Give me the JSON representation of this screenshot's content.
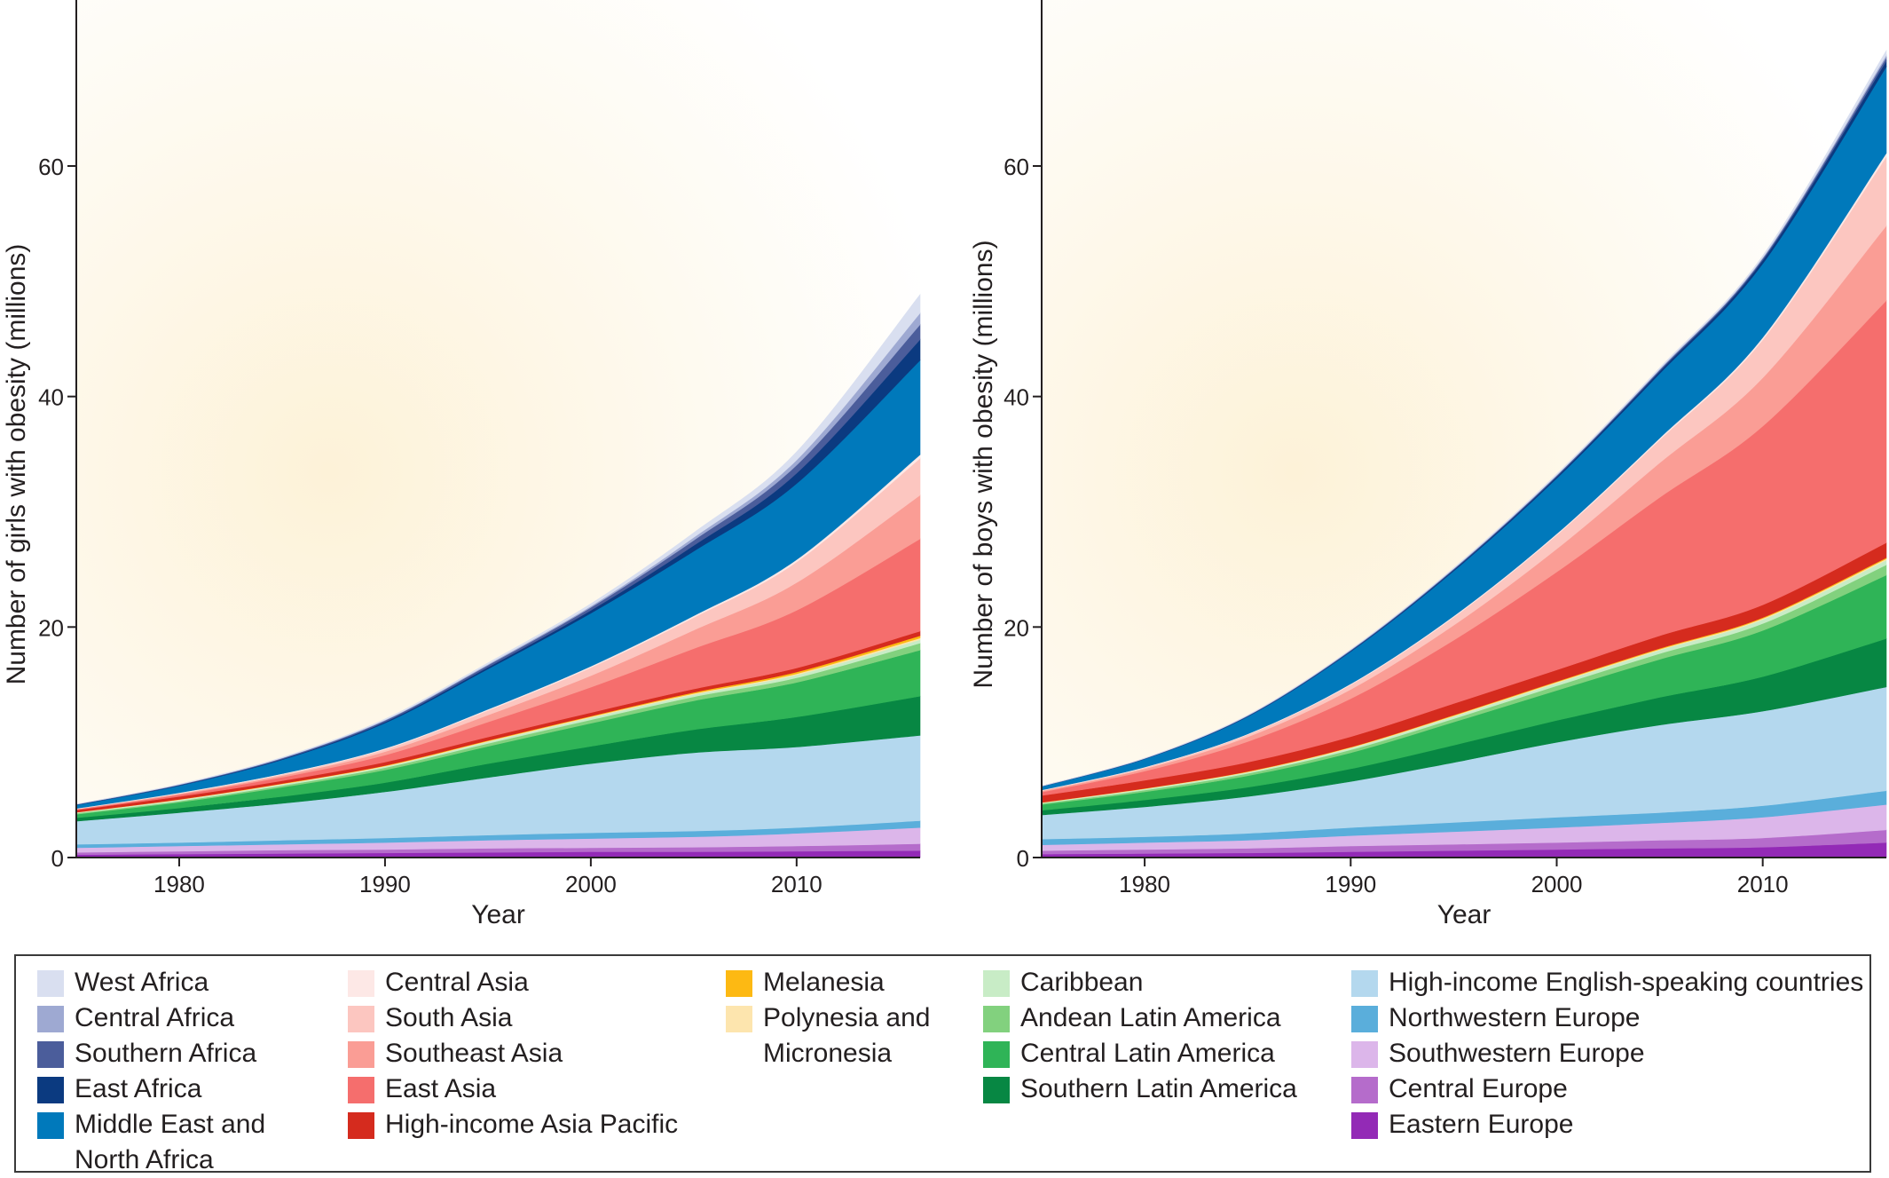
{
  "chart_data": [
    {
      "type": "area",
      "stacked": true,
      "title": "",
      "xlabel": "Year",
      "ylabel": "Number of girls with obesity (millions)",
      "xlim": [
        1975,
        2016
      ],
      "ylim": [
        0,
        75
      ],
      "x_ticks": [
        1980,
        1990,
        2000,
        2010
      ],
      "y_ticks": [
        0,
        20,
        40,
        60
      ],
      "x": [
        1975,
        1980,
        1985,
        1990,
        1995,
        2000,
        2005,
        2010,
        2016
      ],
      "series": [
        {
          "name": "Eastern Europe",
          "values": [
            0.25,
            0.3,
            0.35,
            0.4,
            0.45,
            0.5,
            0.5,
            0.55,
            0.6
          ]
        },
        {
          "name": "Central Europe",
          "values": [
            0.2,
            0.25,
            0.3,
            0.3,
            0.35,
            0.35,
            0.4,
            0.45,
            0.6
          ]
        },
        {
          "name": "Southwestern Europe",
          "values": [
            0.4,
            0.45,
            0.5,
            0.6,
            0.7,
            0.8,
            0.9,
            1.1,
            1.4
          ]
        },
        {
          "name": "Northwestern Europe",
          "values": [
            0.3,
            0.3,
            0.35,
            0.4,
            0.45,
            0.5,
            0.5,
            0.5,
            0.6
          ]
        },
        {
          "name": "High-income English-speaking countries",
          "values": [
            2.0,
            2.6,
            3.2,
            4.0,
            5.0,
            6.0,
            6.8,
            7.0,
            7.4
          ]
        },
        {
          "name": "Southern Latin America",
          "values": [
            0.3,
            0.4,
            0.6,
            0.8,
            1.2,
            1.5,
            2.0,
            2.6,
            3.4
          ]
        },
        {
          "name": "Central Latin America",
          "values": [
            0.3,
            0.5,
            0.8,
            1.1,
            1.5,
            2.0,
            2.5,
            3.0,
            4.0
          ]
        },
        {
          "name": "Andean Latin America",
          "values": [
            0.1,
            0.1,
            0.15,
            0.2,
            0.25,
            0.3,
            0.35,
            0.4,
            0.6
          ]
        },
        {
          "name": "Caribbean",
          "values": [
            0.05,
            0.1,
            0.1,
            0.1,
            0.15,
            0.2,
            0.2,
            0.25,
            0.3
          ]
        },
        {
          "name": "Polynesia and Micronesia",
          "values": [
            0.02,
            0.03,
            0.04,
            0.05,
            0.06,
            0.07,
            0.08,
            0.1,
            0.15
          ]
        },
        {
          "name": "Melanesia",
          "values": [
            0.01,
            0.02,
            0.03,
            0.04,
            0.05,
            0.06,
            0.1,
            0.15,
            0.2
          ]
        },
        {
          "name": "High-income Asia Pacific",
          "values": [
            0.2,
            0.25,
            0.25,
            0.3,
            0.3,
            0.3,
            0.3,
            0.35,
            0.4
          ]
        },
        {
          "name": "East Asia",
          "values": [
            0.05,
            0.15,
            0.3,
            0.6,
            1.3,
            2.2,
            3.5,
            5.0,
            8.0
          ]
        },
        {
          "name": "Southeast Asia",
          "values": [
            0.03,
            0.08,
            0.15,
            0.3,
            0.6,
            1.0,
            1.6,
            2.4,
            3.8
          ]
        },
        {
          "name": "South Asia",
          "values": [
            0.02,
            0.05,
            0.1,
            0.2,
            0.4,
            0.7,
            1.1,
            1.8,
            3.2
          ]
        },
        {
          "name": "Central Asia",
          "values": [
            0.03,
            0.05,
            0.06,
            0.08,
            0.1,
            0.12,
            0.15,
            0.2,
            0.3
          ]
        },
        {
          "name": "Middle East and North Africa",
          "values": [
            0.3,
            0.6,
            1.2,
            2.2,
            3.5,
            4.6,
            5.6,
            6.6,
            8.2
          ]
        },
        {
          "name": "East Africa",
          "values": [
            0.02,
            0.04,
            0.06,
            0.1,
            0.15,
            0.25,
            0.5,
            0.9,
            1.8
          ]
        },
        {
          "name": "Southern Africa",
          "values": [
            0.03,
            0.05,
            0.08,
            0.12,
            0.18,
            0.25,
            0.45,
            0.7,
            1.3
          ]
        },
        {
          "name": "Central Africa",
          "values": [
            0.01,
            0.02,
            0.03,
            0.05,
            0.08,
            0.12,
            0.25,
            0.45,
            1.0
          ]
        },
        {
          "name": "West Africa",
          "values": [
            0.02,
            0.03,
            0.05,
            0.08,
            0.12,
            0.2,
            0.4,
            0.7,
            1.6
          ]
        }
      ]
    },
    {
      "type": "area",
      "stacked": true,
      "title": "",
      "xlabel": "Year",
      "ylabel": "Number of boys with obesity (millions)",
      "xlim": [
        1975,
        2016
      ],
      "ylim": [
        0,
        75
      ],
      "x_ticks": [
        1980,
        1990,
        2000,
        2010
      ],
      "y_ticks": [
        0,
        20,
        40,
        60
      ],
      "x": [
        1975,
        1980,
        1985,
        1990,
        1995,
        2000,
        2005,
        2010,
        2016
      ],
      "series": [
        {
          "name": "Eastern Europe",
          "values": [
            0.3,
            0.35,
            0.4,
            0.5,
            0.6,
            0.7,
            0.8,
            0.9,
            1.3
          ]
        },
        {
          "name": "Central Europe",
          "values": [
            0.3,
            0.35,
            0.4,
            0.5,
            0.55,
            0.6,
            0.7,
            0.8,
            1.1
          ]
        },
        {
          "name": "Southwestern Europe",
          "values": [
            0.5,
            0.6,
            0.7,
            0.9,
            1.1,
            1.3,
            1.5,
            1.8,
            2.2
          ]
        },
        {
          "name": "Northwestern Europe",
          "values": [
            0.5,
            0.5,
            0.6,
            0.7,
            0.8,
            0.9,
            0.9,
            1.0,
            1.2
          ]
        },
        {
          "name": "High-income English-speaking countries",
          "values": [
            2.1,
            2.6,
            3.2,
            4.0,
            5.2,
            6.5,
            7.6,
            8.2,
            9.0
          ]
        },
        {
          "name": "Southern Latin America",
          "values": [
            0.4,
            0.6,
            0.8,
            1.1,
            1.5,
            1.9,
            2.4,
            3.0,
            4.2
          ]
        },
        {
          "name": "Central Latin America",
          "values": [
            0.5,
            0.7,
            1.0,
            1.4,
            2.0,
            2.6,
            3.3,
            4.0,
            5.5
          ]
        },
        {
          "name": "Andean Latin America",
          "values": [
            0.1,
            0.15,
            0.2,
            0.25,
            0.3,
            0.4,
            0.5,
            0.6,
            0.9
          ]
        },
        {
          "name": "Caribbean",
          "values": [
            0.05,
            0.1,
            0.1,
            0.15,
            0.2,
            0.25,
            0.3,
            0.35,
            0.4
          ]
        },
        {
          "name": "Polynesia and Micronesia",
          "values": [
            0.02,
            0.03,
            0.04,
            0.05,
            0.06,
            0.07,
            0.08,
            0.1,
            0.12
          ]
        },
        {
          "name": "Melanesia",
          "values": [
            0.01,
            0.02,
            0.03,
            0.04,
            0.05,
            0.06,
            0.07,
            0.08,
            0.1
          ]
        },
        {
          "name": "High-income Asia Pacific",
          "values": [
            0.6,
            0.7,
            0.8,
            0.9,
            1.0,
            1.0,
            1.1,
            1.1,
            1.3
          ]
        },
        {
          "name": "East Asia",
          "values": [
            0.3,
            0.8,
            1.8,
            3.3,
            5.5,
            8.5,
            12.0,
            15.5,
            21.0
          ]
        },
        {
          "name": "Southeast Asia",
          "values": [
            0.1,
            0.2,
            0.4,
            0.8,
            1.3,
            2.0,
            3.0,
            4.2,
            6.5
          ]
        },
        {
          "name": "South Asia",
          "values": [
            0.05,
            0.1,
            0.2,
            0.4,
            0.7,
            1.2,
            2.0,
            3.3,
            6.0
          ]
        },
        {
          "name": "Central Asia",
          "values": [
            0.03,
            0.05,
            0.06,
            0.08,
            0.1,
            0.12,
            0.15,
            0.2,
            0.3
          ]
        },
        {
          "name": "Middle East and North Africa",
          "values": [
            0.3,
            0.7,
            1.5,
            2.8,
            3.9,
            4.8,
            5.6,
            6.4,
            7.5
          ]
        },
        {
          "name": "East Africa",
          "values": [
            0.01,
            0.02,
            0.04,
            0.06,
            0.1,
            0.15,
            0.2,
            0.3,
            0.5
          ]
        },
        {
          "name": "Southern Africa",
          "values": [
            0.02,
            0.03,
            0.04,
            0.06,
            0.08,
            0.1,
            0.12,
            0.15,
            0.3
          ]
        },
        {
          "name": "Central Africa",
          "values": [
            0.01,
            0.01,
            0.02,
            0.03,
            0.04,
            0.05,
            0.07,
            0.09,
            0.2
          ]
        },
        {
          "name": "West Africa",
          "values": [
            0.01,
            0.02,
            0.03,
            0.04,
            0.06,
            0.08,
            0.1,
            0.15,
            0.4
          ]
        }
      ]
    }
  ],
  "legend": {
    "columns": [
      [
        {
          "label": "West Africa",
          "color": "#d9dff0"
        },
        {
          "label": "Central Africa",
          "color": "#9ea9d2"
        },
        {
          "label": "Southern Africa",
          "color": "#4b5d9b"
        },
        {
          "label": "East Africa",
          "color": "#0b3a80"
        },
        {
          "label": "Middle East and\nNorth Africa",
          "color": "#0079bb"
        }
      ],
      [
        {
          "label": "Central Asia",
          "color": "#fde8e6"
        },
        {
          "label": "South Asia",
          "color": "#fcc6c0"
        },
        {
          "label": "Southeast Asia",
          "color": "#fa9d95"
        },
        {
          "label": "East Asia",
          "color": "#f56e6d"
        },
        {
          "label": "High-income Asia Pacific",
          "color": "#d52b1e"
        }
      ],
      [
        {
          "label": "Melanesia",
          "color": "#fdb913"
        },
        {
          "label": "Polynesia and\nMicronesia",
          "color": "#fde5ae"
        }
      ],
      [
        {
          "label": "Caribbean",
          "color": "#c8ecc6"
        },
        {
          "label": "Andean Latin America",
          "color": "#82d17e"
        },
        {
          "label": "Central Latin America",
          "color": "#2fb457"
        },
        {
          "label": "Southern Latin America",
          "color": "#078743"
        }
      ],
      [
        {
          "label": "High-income English-speaking countries",
          "color": "#b4d8ee"
        },
        {
          "label": "Northwestern Europe",
          "color": "#5aaedb"
        },
        {
          "label": "Southwestern Europe",
          "color": "#dcb6ea"
        },
        {
          "label": "Central Europe",
          "color": "#b56ccb"
        },
        {
          "label": "Eastern Europe",
          "color": "#932ab6"
        }
      ]
    ]
  },
  "colors": {
    "West Africa": "#d9dff0",
    "Central Africa": "#9ea9d2",
    "Southern Africa": "#4b5d9b",
    "East Africa": "#0b3a80",
    "Middle East and North Africa": "#0079bb",
    "Central Asia": "#fde8e6",
    "South Asia": "#fcc6c0",
    "Southeast Asia": "#fa9d95",
    "East Asia": "#f56e6d",
    "High-income Asia Pacific": "#d52b1e",
    "Melanesia": "#fdb913",
    "Polynesia and Micronesia": "#fde5ae",
    "Caribbean": "#c8ecc6",
    "Andean Latin America": "#82d17e",
    "Central Latin America": "#2fb457",
    "Southern Latin America": "#078743",
    "High-income English-speaking countries": "#b4d8ee",
    "Northwestern Europe": "#5aaedb",
    "Southwestern Europe": "#dcb6ea",
    "Central Europe": "#b56ccb",
    "Eastern Europe": "#932ab6",
    "background_glow": "#fdf2d8"
  }
}
